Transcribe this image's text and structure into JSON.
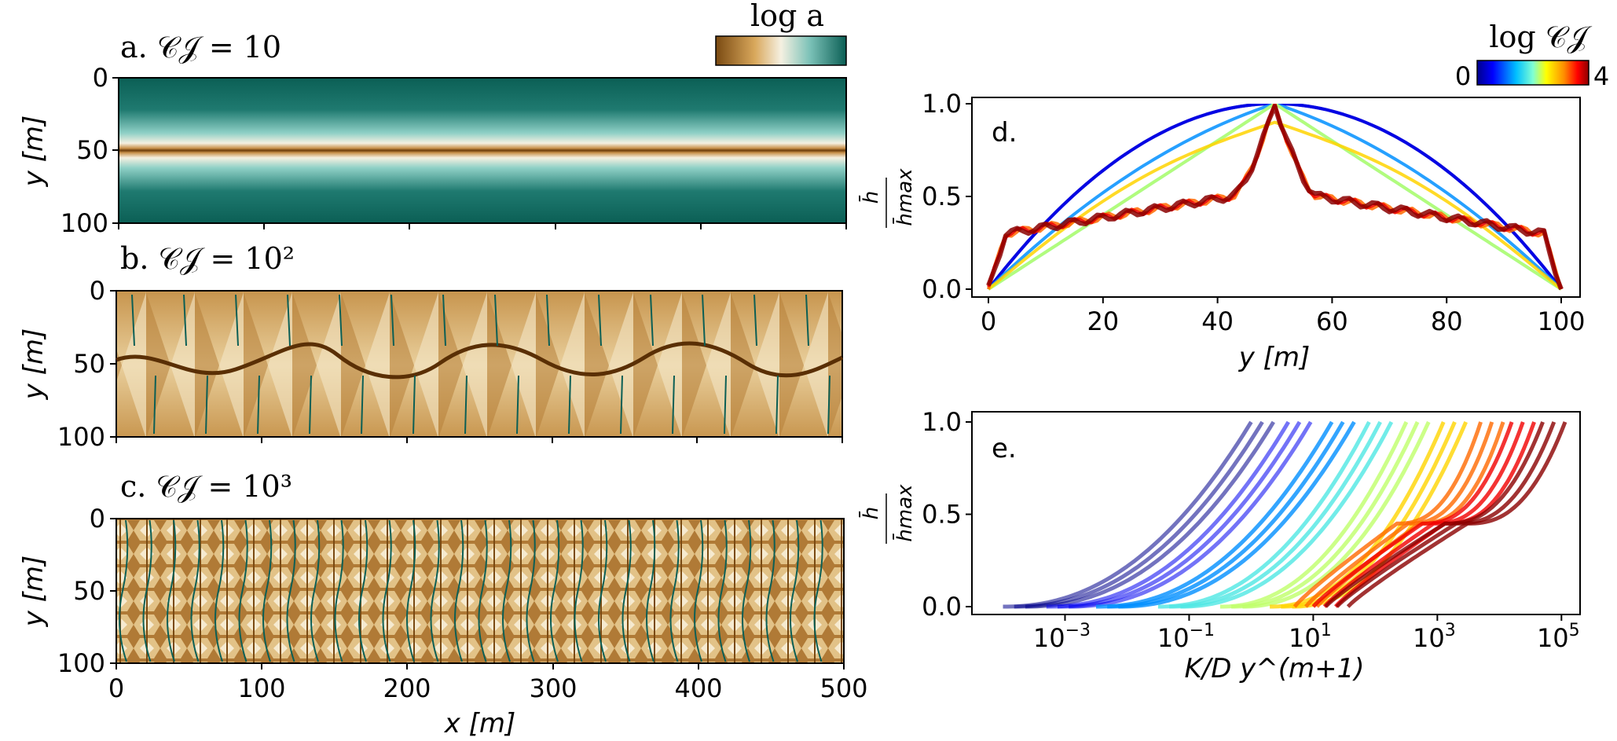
{
  "chart_data": [
    {
      "panel": "a",
      "type": "heatmap",
      "title": "a. 𝒞𝒥 = 10",
      "colorbar_label": "log a",
      "colormap": [
        "#7a4a12",
        "#d9a85c",
        "#f5f0e1",
        "#7cc2b8",
        "#0b5f55"
      ],
      "pattern": "single straight valley along y = 50",
      "xlim": [
        0,
        500
      ],
      "ylim": [
        0,
        100
      ],
      "yticks": [
        "0",
        "50",
        "100"
      ],
      "ylabel": "y [m]"
    },
    {
      "panel": "b",
      "type": "heatmap",
      "title": "b. 𝒞𝒥 = 10²",
      "pattern": "sinuous main valley near y = 50 with ~13 tributaries per side",
      "xlim": [
        0,
        500
      ],
      "ylim": [
        0,
        100
      ],
      "yticks": [
        "0",
        "50",
        "100"
      ],
      "ylabel": "y [m]"
    },
    {
      "panel": "c",
      "type": "heatmap",
      "title": "c. 𝒞𝒥 = 10³",
      "pattern": "dense dendritic network of many small channels",
      "xlim": [
        0,
        500
      ],
      "ylim": [
        0,
        100
      ],
      "yticks": [
        "0",
        "50",
        "100"
      ],
      "xticks": [
        "0",
        "100",
        "200",
        "300",
        "400",
        "500"
      ],
      "xlabel": "x [m]",
      "ylabel": "y [m]"
    },
    {
      "panel": "d",
      "type": "line",
      "label": "d.",
      "xlabel": "y [m]",
      "ylabel_num": "h̄",
      "ylabel_den": "h̄max",
      "xlim": [
        0,
        100
      ],
      "ylim": [
        0,
        1.0
      ],
      "xticks": [
        "0",
        "20",
        "40",
        "60",
        "80",
        "100"
      ],
      "yticks": [
        "0.0",
        "0.5",
        "1.0"
      ],
      "colorbar_label": "log 𝒞𝒥",
      "colorbar_min": "0",
      "colorbar_max": "4",
      "colormap": [
        "#00008b",
        "#0000ff",
        "#00bfff",
        "#7fffd4",
        "#ffff00",
        "#ff8c00",
        "#ff0000",
        "#8b0000"
      ],
      "series": [
        {
          "logC": 0.0,
          "profile": "parabolic"
        },
        {
          "logC": 0.5,
          "profile": "parabolic"
        },
        {
          "logC": 1.0,
          "profile": "parabolic-linear"
        },
        {
          "logC": 1.5,
          "profile": "linear"
        },
        {
          "logC": 2.0,
          "profile": "linear"
        },
        {
          "logC": 2.5,
          "profile": "intermediate"
        },
        {
          "logC": 3.0,
          "profile": "shoulder"
        },
        {
          "logC": 3.5,
          "profile": "shoulder"
        },
        {
          "logC": 4.0,
          "profile": "shoulder"
        }
      ]
    },
    {
      "panel": "e",
      "type": "line",
      "label": "e.",
      "xscale": "log",
      "xlabel": "K/D y^(m+1)",
      "ylabel_num": "h̄",
      "ylabel_den": "h̄max",
      "xlim_log10": [
        -4.5,
        5.3
      ],
      "ylim": [
        0,
        1.0
      ],
      "xticks": [
        {
          "base": "10",
          "exp": "−3",
          "log10": -3
        },
        {
          "base": "10",
          "exp": "−1",
          "log10": -1
        },
        {
          "base": "10",
          "exp": "1",
          "log10": 1
        },
        {
          "base": "10",
          "exp": "3",
          "log10": 3
        },
        {
          "base": "10",
          "exp": "5",
          "log10": 5
        }
      ],
      "yticks": [
        "0.0",
        "0.5",
        "1.0"
      ],
      "series": [
        {
          "logC": 0.0,
          "x_start_log10": -4.0,
          "x_end_log10": 0.0
        },
        {
          "logC": 0.5,
          "x_start_log10": -3.3,
          "x_end_log10": 0.6
        },
        {
          "logC": 1.0,
          "x_start_log10": -2.5,
          "x_end_log10": 1.3
        },
        {
          "logC": 1.5,
          "x_start_log10": -1.5,
          "x_end_log10": 1.9
        },
        {
          "logC": 2.0,
          "x_start_log10": -0.5,
          "x_end_log10": 2.5
        },
        {
          "logC": 2.5,
          "x_start_log10": 0.3,
          "x_end_log10": 3.1
        },
        {
          "logC": 3.0,
          "x_start_log10": 0.7,
          "x_end_log10": 3.7
        },
        {
          "logC": 3.5,
          "x_start_log10": 1.0,
          "x_end_log10": 4.2
        },
        {
          "logC": 4.0,
          "x_start_log10": 1.2,
          "x_end_log10": 4.7
        }
      ]
    }
  ]
}
